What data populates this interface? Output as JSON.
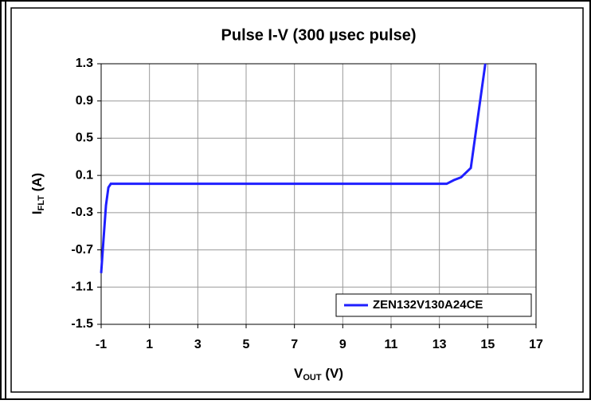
{
  "chart_data": {
    "type": "line",
    "title": "Pulse I-V (300 µsec pulse)",
    "xlabel": "V",
    "xlabel_sub": "OUT",
    "xlabel_unit": " (V)",
    "ylabel": "I",
    "ylabel_sub": "FLT",
    "ylabel_unit": " (A)",
    "xlim": [
      -1,
      17
    ],
    "xticks": [
      -1,
      1,
      3,
      5,
      7,
      9,
      11,
      13,
      15,
      17
    ],
    "ylim": [
      -1.5,
      1.3
    ],
    "yticks": [
      1.3,
      0.9,
      0.5,
      0.1,
      -0.3,
      -0.7,
      -1.1,
      -1.5
    ],
    "grid": true,
    "legend": "lower right",
    "series": [
      {
        "name": "ZEN132V130A24CE",
        "color": "#1f1fff",
        "x": [
          -1,
          -0.9,
          -0.8,
          -0.7,
          -0.6,
          13.3,
          13.6,
          13.9,
          14.3,
          14.9
        ],
        "values": [
          -0.95,
          -0.58,
          -0.22,
          -0.03,
          0.01,
          0.01,
          0.05,
          0.08,
          0.18,
          1.3
        ]
      }
    ]
  }
}
